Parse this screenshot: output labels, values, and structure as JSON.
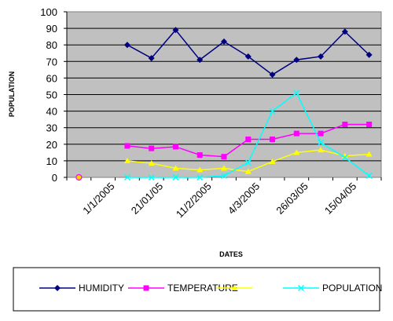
{
  "chart_data": {
    "type": "line",
    "xlabel": "DATES",
    "ylabel": "POPULATION",
    "ylim": [
      0,
      100
    ],
    "ytick_step": 10,
    "grid": "horizontal",
    "plot_background": "#c0c0c0",
    "legend_position": "bottom",
    "x_tick_labels": [
      "1/1/2005",
      "21/01/05",
      "11/2/2005",
      "4/3/2005",
      "26/03/05",
      "15/04/05"
    ],
    "x_tick_positions": [
      1.5,
      3.5,
      5.5,
      7.5,
      9.5,
      11.5
    ],
    "n_positions": 13,
    "series": [
      {
        "name": "HUMIDITY",
        "color": "#000080",
        "marker": "diamond",
        "x": [
          2,
          3,
          4,
          5,
          6,
          7,
          8,
          9,
          10,
          11,
          12
        ],
        "values": [
          80,
          72,
          89,
          71,
          82,
          73,
          62,
          71,
          73,
          88,
          74
        ]
      },
      {
        "name": "TEMPERATURE",
        "color": "#ff00ff",
        "marker": "square",
        "x": [
          2,
          3,
          4,
          5,
          6,
          7,
          8,
          9,
          10,
          11,
          12
        ],
        "values": [
          19,
          17.5,
          18.5,
          13.5,
          12.5,
          23,
          23,
          26.5,
          26.5,
          32,
          32
        ]
      },
      {
        "name": "",
        "color": "#ffff00",
        "marker": "triangle",
        "x": [
          2,
          3,
          4,
          5,
          6,
          7,
          8,
          9,
          10,
          11,
          12
        ],
        "values": [
          10,
          8.5,
          5.5,
          4.5,
          5.5,
          3.5,
          9.5,
          15,
          16.5,
          13,
          14
        ]
      },
      {
        "name": "POPULATION",
        "color": "#00ffff",
        "marker": "x",
        "x": [
          2,
          3,
          4,
          5,
          6,
          7,
          8,
          9,
          10,
          11,
          12
        ],
        "values": [
          0,
          0,
          0,
          0,
          1,
          9,
          40,
          51,
          21,
          12,
          1
        ]
      }
    ],
    "extra_points": [
      {
        "x": 0,
        "y": 0,
        "marker": "circle",
        "color": "#ffd700",
        "stroke": "#ff00ff"
      }
    ]
  }
}
